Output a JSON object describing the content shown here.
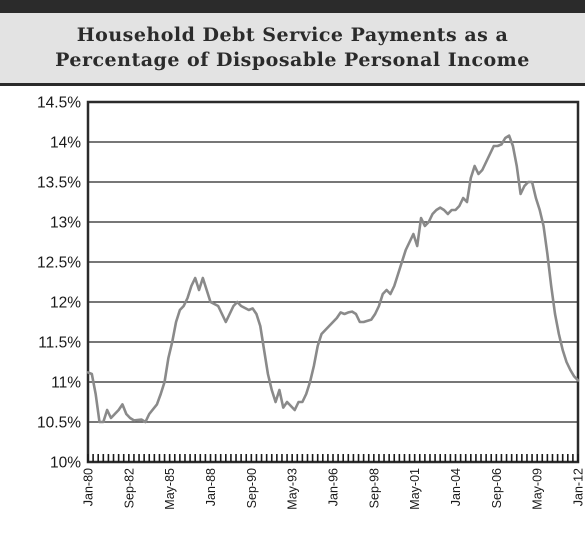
{
  "chart_data": {
    "type": "line",
    "title_lines": [
      "Household Debt Service Payments as a",
      "Percentage of Disposable Personal Income"
    ],
    "xlabel": "",
    "ylabel": "",
    "ylim": [
      10,
      14.5
    ],
    "y_ticks": [
      "14.5%",
      "14%",
      "13.5%",
      "13%",
      "12.5%",
      "12%",
      "11.5%",
      "11%",
      "10.5%",
      "10%"
    ],
    "y_tick_values": [
      14.5,
      14,
      13.5,
      13,
      12.5,
      12,
      11.5,
      11,
      10.5,
      10
    ],
    "x_ticks": [
      "Jan-80",
      "Sep-82",
      "May-85",
      "Jan-88",
      "Sep-90",
      "May-93",
      "Jan-96",
      "Sep-98",
      "May-01",
      "Jan-04",
      "Sep-06",
      "May-09",
      "Jan-12"
    ],
    "x_tick_positions": [
      1980.0,
      1982.667,
      1985.333,
      1988.0,
      1990.667,
      1993.333,
      1996.0,
      1998.667,
      2001.333,
      2004.0,
      2006.667,
      2009.333,
      2012.0
    ],
    "xlim": [
      1980.0,
      2012.0
    ],
    "grid": true,
    "line_color": "#8a8a8a",
    "series": [
      {
        "values": [
          [
            1980.0,
            11.12
          ],
          [
            1980.25,
            11.1
          ],
          [
            1980.5,
            10.85
          ],
          [
            1980.75,
            10.5
          ],
          [
            1981.0,
            10.5
          ],
          [
            1981.25,
            10.65
          ],
          [
            1981.5,
            10.55
          ],
          [
            1981.75,
            10.6
          ],
          [
            1982.0,
            10.65
          ],
          [
            1982.25,
            10.72
          ],
          [
            1982.5,
            10.6
          ],
          [
            1982.75,
            10.55
          ],
          [
            1983.0,
            10.52
          ],
          [
            1983.5,
            10.53
          ],
          [
            1983.75,
            10.5
          ],
          [
            1984.0,
            10.6
          ],
          [
            1984.5,
            10.72
          ],
          [
            1984.75,
            10.85
          ],
          [
            1985.0,
            11.0
          ],
          [
            1985.25,
            11.3
          ],
          [
            1985.5,
            11.5
          ],
          [
            1985.75,
            11.75
          ],
          [
            1986.0,
            11.9
          ],
          [
            1986.25,
            11.95
          ],
          [
            1986.5,
            12.05
          ],
          [
            1986.75,
            12.2
          ],
          [
            1987.0,
            12.3
          ],
          [
            1987.25,
            12.15
          ],
          [
            1987.5,
            12.3
          ],
          [
            1987.75,
            12.15
          ],
          [
            1988.0,
            12.0
          ],
          [
            1988.5,
            11.95
          ],
          [
            1988.75,
            11.85
          ],
          [
            1989.0,
            11.75
          ],
          [
            1989.25,
            11.85
          ],
          [
            1989.5,
            11.95
          ],
          [
            1989.75,
            12.0
          ],
          [
            1990.0,
            11.95
          ],
          [
            1990.5,
            11.9
          ],
          [
            1990.75,
            11.92
          ],
          [
            1991.0,
            11.85
          ],
          [
            1991.25,
            11.7
          ],
          [
            1991.5,
            11.4
          ],
          [
            1991.75,
            11.1
          ],
          [
            1992.0,
            10.9
          ],
          [
            1992.25,
            10.75
          ],
          [
            1992.5,
            10.9
          ],
          [
            1992.75,
            10.68
          ],
          [
            1993.0,
            10.75
          ],
          [
            1993.25,
            10.7
          ],
          [
            1993.5,
            10.65
          ],
          [
            1993.75,
            10.75
          ],
          [
            1994.0,
            10.75
          ],
          [
            1994.25,
            10.85
          ],
          [
            1994.5,
            11.0
          ],
          [
            1994.75,
            11.2
          ],
          [
            1995.0,
            11.45
          ],
          [
            1995.25,
            11.6
          ],
          [
            1995.5,
            11.65
          ],
          [
            1996.0,
            11.75
          ],
          [
            1996.25,
            11.8
          ],
          [
            1996.5,
            11.87
          ],
          [
            1996.75,
            11.85
          ],
          [
            1997.0,
            11.87
          ],
          [
            1997.25,
            11.88
          ],
          [
            1997.5,
            11.85
          ],
          [
            1997.75,
            11.75
          ],
          [
            1998.0,
            11.75
          ],
          [
            1998.5,
            11.78
          ],
          [
            1998.75,
            11.85
          ],
          [
            1999.0,
            11.95
          ],
          [
            1999.25,
            12.1
          ],
          [
            1999.5,
            12.15
          ],
          [
            1999.75,
            12.1
          ],
          [
            2000.0,
            12.2
          ],
          [
            2000.25,
            12.35
          ],
          [
            2000.5,
            12.5
          ],
          [
            2000.75,
            12.65
          ],
          [
            2001.0,
            12.75
          ],
          [
            2001.25,
            12.85
          ],
          [
            2001.5,
            12.7
          ],
          [
            2001.75,
            13.05
          ],
          [
            2002.0,
            12.95
          ],
          [
            2002.25,
            13.0
          ],
          [
            2002.5,
            13.1
          ],
          [
            2002.75,
            13.15
          ],
          [
            2003.0,
            13.18
          ],
          [
            2003.25,
            13.15
          ],
          [
            2003.5,
            13.1
          ],
          [
            2003.75,
            13.15
          ],
          [
            2004.0,
            13.15
          ],
          [
            2004.25,
            13.2
          ],
          [
            2004.5,
            13.3
          ],
          [
            2004.75,
            13.25
          ],
          [
            2005.0,
            13.55
          ],
          [
            2005.25,
            13.7
          ],
          [
            2005.5,
            13.6
          ],
          [
            2005.75,
            13.65
          ],
          [
            2006.0,
            13.75
          ],
          [
            2006.25,
            13.85
          ],
          [
            2006.5,
            13.95
          ],
          [
            2006.75,
            13.95
          ],
          [
            2007.0,
            13.97
          ],
          [
            2007.25,
            14.05
          ],
          [
            2007.5,
            14.08
          ],
          [
            2007.75,
            13.95
          ],
          [
            2008.0,
            13.7
          ],
          [
            2008.25,
            13.35
          ],
          [
            2008.5,
            13.45
          ],
          [
            2008.75,
            13.5
          ],
          [
            2009.0,
            13.5
          ],
          [
            2009.25,
            13.3
          ],
          [
            2009.5,
            13.15
          ],
          [
            2009.75,
            12.95
          ],
          [
            2010.0,
            12.6
          ],
          [
            2010.25,
            12.2
          ],
          [
            2010.5,
            11.85
          ],
          [
            2010.75,
            11.6
          ],
          [
            2011.0,
            11.4
          ],
          [
            2011.25,
            11.25
          ],
          [
            2011.5,
            11.15
          ],
          [
            2011.75,
            11.07
          ],
          [
            2012.0,
            11.02
          ]
        ]
      }
    ]
  }
}
